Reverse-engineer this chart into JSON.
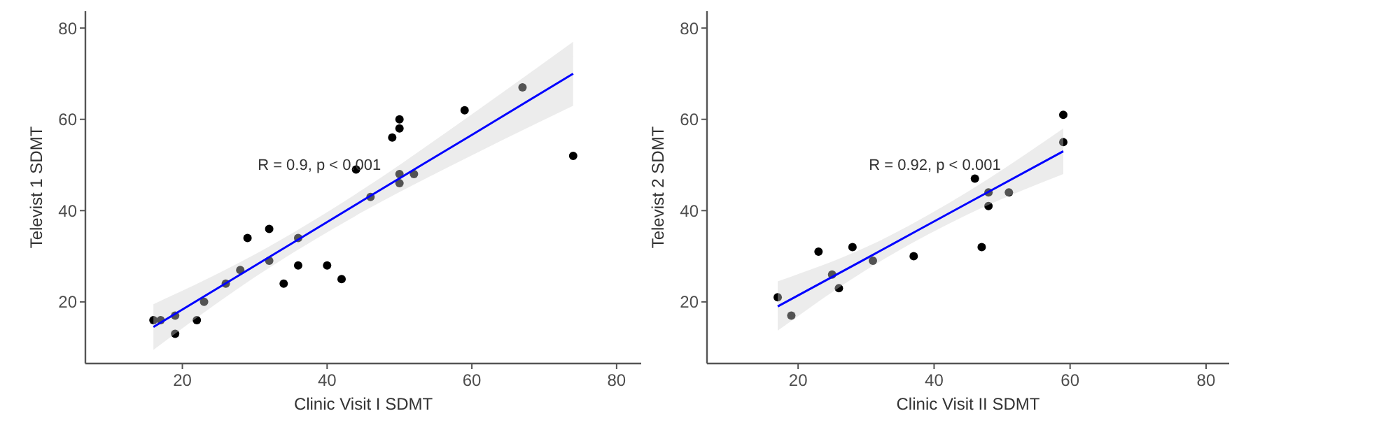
{
  "chart_data": [
    {
      "type": "scatter",
      "xlabel": "Clinic Visit I SDMT",
      "ylabel": "Televist 1 SDMT",
      "xlim": [
        6.6,
        83.4
      ],
      "ylim": [
        6.5,
        83.7
      ],
      "xticks": [
        20,
        40,
        60,
        80
      ],
      "yticks": [
        20,
        40,
        60,
        80
      ],
      "grid": false,
      "annotations": [
        "R = 0.9, p < 0.001"
      ],
      "series": [
        {
          "color": "#000000",
          "marker": "circle",
          "x": [
            16,
            17,
            19,
            19,
            22,
            23,
            26,
            28,
            29,
            32,
            32,
            34,
            36,
            36,
            40,
            42,
            46,
            44,
            49,
            50,
            50,
            50,
            50,
            52,
            59,
            67,
            74
          ],
          "values": [
            16,
            16,
            17,
            13,
            16,
            20,
            24,
            27,
            34,
            36,
            29,
            24,
            34,
            28,
            28,
            25,
            43,
            49,
            56,
            60,
            58,
            48,
            46,
            48,
            62,
            67,
            52
          ]
        },
        {
          "type": "line",
          "color": "#0000ff",
          "marker": "none",
          "x": [
            16,
            30,
            45,
            60,
            74
          ],
          "values": [
            14.5,
            27.9,
            42.3,
            56.6,
            70
          ],
          "lower": [
            9.5,
            25.4,
            39.8,
            52.1,
            63
          ],
          "upper": [
            19.5,
            30.4,
            44.7,
            61.1,
            77
          ]
        }
      ]
    },
    {
      "type": "scatter",
      "xlabel": "Clinic Visit II SDMT",
      "ylabel": "Televist 2 SDMT",
      "xlim": [
        6.6,
        83.4
      ],
      "ylim": [
        6.5,
        83.7
      ],
      "xticks": [
        20,
        40,
        60,
        80
      ],
      "yticks": [
        20,
        40,
        60,
        80
      ],
      "grid": false,
      "annotations": [
        "R = 0.92, p < 0.001"
      ],
      "series": [
        {
          "color": "#000000",
          "marker": "circle",
          "x": [
            17,
            19,
            23,
            25,
            26,
            28,
            31,
            37,
            47,
            48,
            46,
            48,
            51,
            59,
            59
          ],
          "values": [
            21,
            17,
            31,
            26,
            23,
            32,
            29,
            30,
            32,
            41,
            47,
            44,
            44,
            61,
            55
          ]
        },
        {
          "type": "line",
          "color": "#0000ff",
          "marker": "none",
          "x": [
            17,
            30,
            45,
            59
          ],
          "values": [
            19,
            29.5,
            41.7,
            53
          ],
          "lower": [
            13.7,
            27,
            39.2,
            48
          ],
          "upper": [
            24.5,
            32,
            44.2,
            58
          ]
        }
      ]
    }
  ]
}
